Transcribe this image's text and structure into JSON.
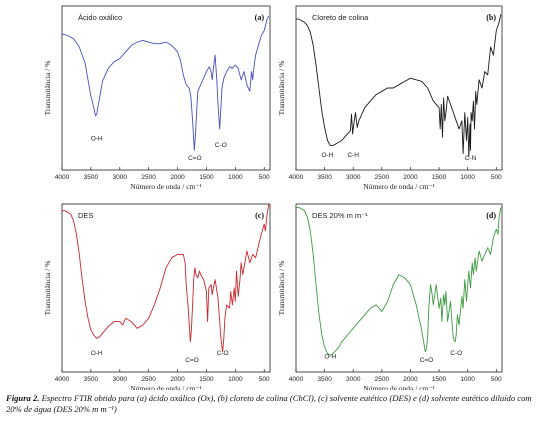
{
  "caption": {
    "label": "Figura 2.",
    "text": "Espectro FTIR obtido para (a) ácido oxálico (Ox), (b) cloreto de colina (ChCl), (c) solvente eutético (DES) e (d) solvente eutético diluído com 20% de água (DES 20% m m⁻¹)"
  },
  "chart_data": [
    {
      "type": "line",
      "letter": "(a)",
      "title": "Ácido oxálico",
      "color": "#4a4fc0",
      "xlabel": "Número de onda / cm⁻¹",
      "ylabel": "Transmitância / %",
      "xlim": [
        4000,
        400
      ],
      "xticks": [
        4000,
        3500,
        3000,
        2500,
        2000,
        1500,
        1000,
        500
      ],
      "ylim": [
        0,
        100
      ],
      "annotations": [
        {
          "text": "O-H",
          "x": 3400,
          "y": 18
        },
        {
          "text": "C=O",
          "x": 1700,
          "y": 6
        },
        {
          "text": "C-O",
          "x": 1250,
          "y": 14
        }
      ],
      "series": [
        {
          "x": [
            4000,
            3900,
            3800,
            3700,
            3600,
            3550,
            3500,
            3450,
            3420,
            3400,
            3380,
            3350,
            3300,
            3200,
            3100,
            3000,
            2900,
            2800,
            2700,
            2600,
            2500,
            2400,
            2300,
            2200,
            2100,
            2000,
            1950,
            1900,
            1850,
            1800,
            1770,
            1740,
            1710,
            1690,
            1670,
            1650,
            1600,
            1550,
            1500,
            1450,
            1420,
            1400,
            1380,
            1350,
            1320,
            1300,
            1270,
            1250,
            1230,
            1200,
            1150,
            1100,
            1050,
            1000,
            950,
            900,
            850,
            800,
            750,
            720,
            700,
            680,
            650,
            600,
            550,
            500,
            450,
            420
          ],
          "y": [
            83,
            82,
            80,
            75,
            65,
            55,
            45,
            38,
            33,
            34,
            38,
            44,
            54,
            62,
            66,
            68,
            72,
            76,
            78,
            79,
            78,
            77,
            77,
            78,
            76,
            72,
            67,
            58,
            52,
            50,
            45,
            30,
            12,
            22,
            35,
            48,
            52,
            56,
            60,
            63,
            60,
            55,
            62,
            70,
            55,
            40,
            25,
            38,
            50,
            56,
            60,
            63,
            62,
            64,
            62,
            55,
            60,
            52,
            48,
            60,
            55,
            62,
            70,
            76,
            82,
            85,
            92,
            94
          ]
        }
      ]
    },
    {
      "type": "line",
      "letter": "(b)",
      "title": "Cloreto de colina",
      "color": "#1a1a1a",
      "xlabel": "Número de onda / cm⁻¹",
      "ylabel": "Transmitância / %",
      "xlim": [
        4000,
        400
      ],
      "xticks": [
        4000,
        3500,
        3000,
        2500,
        2000,
        1500,
        1000,
        500
      ],
      "ylim": [
        0,
        100
      ],
      "annotations": [
        {
          "text": "O-H",
          "x": 3450,
          "y": 8
        },
        {
          "text": "C-H",
          "x": 3000,
          "y": 8
        },
        {
          "text": "C-N",
          "x": 950,
          "y": 6
        }
      ],
      "series": [
        {
          "x": [
            4000,
            3950,
            3900,
            3850,
            3800,
            3750,
            3700,
            3650,
            3600,
            3550,
            3500,
            3450,
            3400,
            3350,
            3300,
            3250,
            3200,
            3150,
            3100,
            3050,
            3030,
            3010,
            2990,
            2960,
            2930,
            2900,
            2850,
            2800,
            2700,
            2600,
            2500,
            2400,
            2300,
            2200,
            2100,
            2000,
            1900,
            1800,
            1700,
            1600,
            1550,
            1500,
            1480,
            1460,
            1440,
            1420,
            1400,
            1380,
            1350,
            1300,
            1250,
            1200,
            1150,
            1100,
            1080,
            1050,
            1020,
            1000,
            980,
            960,
            950,
            940,
            920,
            900,
            880,
            860,
            840,
            800,
            750,
            700,
            650,
            600,
            550,
            500,
            450,
            420
          ],
          "y": [
            92,
            92,
            91,
            90,
            88,
            84,
            76,
            64,
            50,
            36,
            26,
            18,
            15,
            15,
            16,
            17,
            18,
            20,
            22,
            24,
            34,
            22,
            28,
            35,
            26,
            30,
            34,
            38,
            42,
            46,
            48,
            50,
            50,
            52,
            54,
            56,
            55,
            54,
            50,
            42,
            40,
            38,
            25,
            40,
            20,
            44,
            30,
            35,
            45,
            40,
            35,
            30,
            25,
            30,
            10,
            35,
            18,
            32,
            8,
            28,
            12,
            35,
            30,
            42,
            25,
            48,
            40,
            55,
            50,
            60,
            58,
            75,
            70,
            85,
            90,
            95
          ]
        }
      ]
    },
    {
      "type": "line",
      "letter": "(c)",
      "title": "DES",
      "color": "#c8282d",
      "xlabel": "Número de onda / cm⁻¹",
      "ylabel": "Transmitância / %",
      "xlim": [
        4000,
        400
      ],
      "xticks": [
        4000,
        3500,
        3000,
        2500,
        2000,
        1500,
        1000,
        500
      ],
      "ylim": [
        0,
        100
      ],
      "annotations": [
        {
          "text": "O-H",
          "x": 3400,
          "y": 10
        },
        {
          "text": "C=O",
          "x": 1750,
          "y": 6
        },
        {
          "text": "C-O",
          "x": 1220,
          "y": 10
        }
      ],
      "series": [
        {
          "x": [
            4000,
            3950,
            3900,
            3850,
            3800,
            3750,
            3700,
            3650,
            3600,
            3550,
            3500,
            3450,
            3400,
            3350,
            3300,
            3250,
            3200,
            3100,
            3000,
            2950,
            2900,
            2800,
            2700,
            2600,
            2500,
            2400,
            2300,
            2200,
            2100,
            2000,
            1950,
            1900,
            1870,
            1850,
            1820,
            1800,
            1780,
            1760,
            1740,
            1720,
            1700,
            1680,
            1650,
            1620,
            1600,
            1550,
            1500,
            1480,
            1460,
            1420,
            1400,
            1380,
            1350,
            1300,
            1270,
            1250,
            1220,
            1200,
            1180,
            1150,
            1100,
            1080,
            1050,
            1020,
            1000,
            980,
            950,
            920,
            900,
            870,
            850,
            800,
            750,
            700,
            650,
            600,
            550,
            500,
            480,
            450,
            430,
            420
          ],
          "y": [
            96,
            96,
            95,
            94,
            90,
            82,
            70,
            55,
            42,
            32,
            25,
            22,
            20,
            21,
            23,
            25,
            27,
            30,
            30,
            28,
            32,
            30,
            26,
            28,
            32,
            40,
            50,
            62,
            68,
            70,
            70,
            70,
            65,
            52,
            40,
            30,
            18,
            25,
            40,
            55,
            62,
            58,
            56,
            60,
            58,
            55,
            48,
            30,
            50,
            52,
            46,
            50,
            55,
            44,
            30,
            20,
            12,
            20,
            32,
            40,
            38,
            48,
            40,
            50,
            42,
            60,
            45,
            55,
            65,
            58,
            62,
            72,
            65,
            70,
            68,
            75,
            82,
            88,
            84,
            94,
            98,
            100
          ]
        }
      ]
    },
    {
      "type": "line",
      "letter": "(d)",
      "title": "DES 20% m m⁻¹",
      "color": "#3e9a42",
      "xlabel": "Número de onda / cm⁻¹",
      "ylabel": "Transmitância / %",
      "xlim": [
        4000,
        400
      ],
      "xticks": [
        4000,
        3500,
        3000,
        2500,
        2000,
        1500,
        1000,
        500
      ],
      "ylim": [
        0,
        100
      ],
      "annotations": [
        {
          "text": "O-H",
          "x": 3400,
          "y": 8
        },
        {
          "text": "C=O",
          "x": 1720,
          "y": 6
        },
        {
          "text": "C-O",
          "x": 1200,
          "y": 10
        }
      ],
      "series": [
        {
          "x": [
            4000,
            3950,
            3900,
            3850,
            3800,
            3750,
            3700,
            3650,
            3600,
            3550,
            3500,
            3450,
            3400,
            3350,
            3300,
            3250,
            3200,
            3100,
            3000,
            2900,
            2800,
            2700,
            2600,
            2500,
            2400,
            2300,
            2200,
            2100,
            2000,
            1950,
            1900,
            1850,
            1820,
            1800,
            1780,
            1760,
            1740,
            1720,
            1700,
            1680,
            1650,
            1620,
            1600,
            1550,
            1500,
            1470,
            1450,
            1420,
            1400,
            1380,
            1350,
            1300,
            1270,
            1250,
            1220,
            1200,
            1180,
            1150,
            1100,
            1080,
            1050,
            1020,
            1000,
            980,
            950,
            920,
            900,
            870,
            850,
            800,
            750,
            700,
            650,
            600,
            550,
            500,
            470,
            450,
            430,
            420
          ],
          "y": [
            98,
            98,
            97,
            96,
            92,
            84,
            70,
            52,
            35,
            22,
            15,
            11,
            10,
            11,
            13,
            15,
            18,
            22,
            26,
            30,
            34,
            38,
            40,
            36,
            42,
            52,
            58,
            56,
            52,
            46,
            40,
            32,
            28,
            24,
            20,
            16,
            12,
            14,
            20,
            38,
            52,
            46,
            40,
            52,
            38,
            44,
            30,
            46,
            40,
            48,
            30,
            42,
            28,
            20,
            18,
            22,
            34,
            28,
            45,
            38,
            55,
            42,
            52,
            60,
            50,
            65,
            58,
            68,
            60,
            72,
            66,
            70,
            74,
            70,
            80,
            85,
            82,
            92,
            96,
            98
          ]
        }
      ]
    }
  ]
}
